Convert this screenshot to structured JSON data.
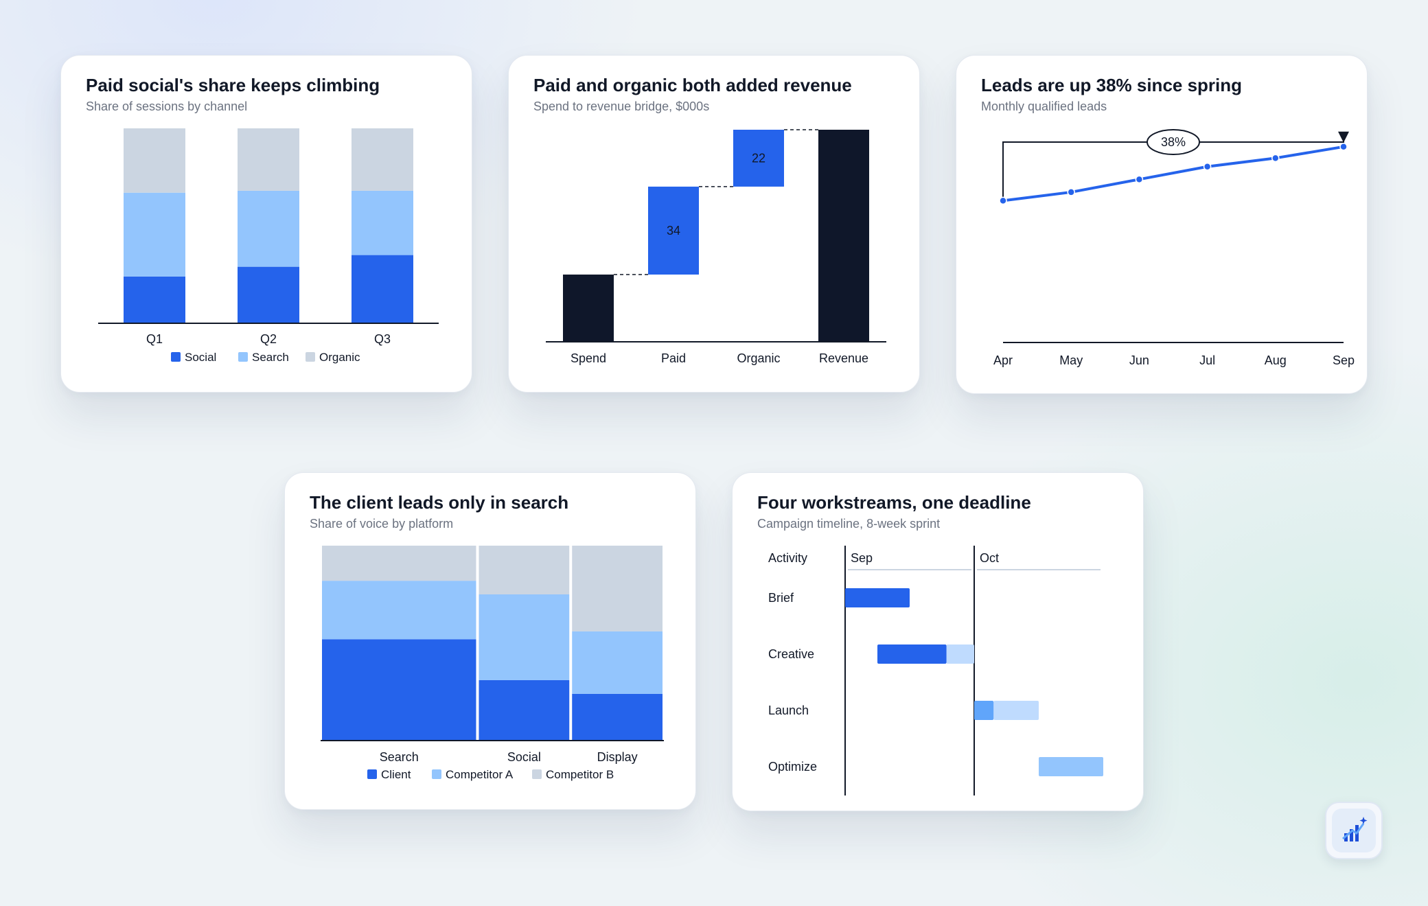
{
  "colors": {
    "social": "#2563eb",
    "search": "#93c5fd",
    "organic": "#cbd5e1",
    "dark": "#0f172a",
    "blue": "#2563eb",
    "client": "#2563eb",
    "competitor_a": "#93c5fd",
    "competitor_b": "#cbd5e1",
    "gantt_done": "#2563eb",
    "gantt_remaining": "#bfdbfe",
    "gantt_optimize": "#93c5fd"
  },
  "charts": {
    "stacked": {
      "title": "Paid social's share keeps climbing",
      "subtitle": "Share of sessions by channel"
    },
    "waterfall": {
      "title": "Paid and organic both added revenue",
      "subtitle": "Spend to revenue bridge, $000s"
    },
    "line": {
      "title": "Leads are up 38% since spring",
      "subtitle": "Monthly qualified leads"
    },
    "mekko": {
      "title": "The client leads only in search",
      "subtitle": "Share of voice by platform"
    },
    "gantt": {
      "title": "Four workstreams, one deadline",
      "subtitle": "Campaign timeline, 8-week sprint"
    }
  },
  "chart_data": [
    {
      "type": "bar",
      "stacked": true,
      "categories": [
        "Q1",
        "Q2",
        "Q3"
      ],
      "series": [
        {
          "name": "Social",
          "values": [
            24,
            29,
            35
          ]
        },
        {
          "name": "Search",
          "values": [
            43,
            39,
            33
          ]
        },
        {
          "name": "Organic",
          "values": [
            33,
            32,
            32
          ]
        }
      ],
      "ylim": [
        0,
        100
      ],
      "legend": "bottom",
      "grid": false
    },
    {
      "type": "bar",
      "subtype": "waterfall",
      "categories": [
        "Spend",
        "Paid",
        "Organic",
        "Revenue"
      ],
      "values": [
        26,
        34,
        22,
        82
      ],
      "kinds": [
        "total",
        "delta",
        "delta",
        "total"
      ],
      "data_labels": [
        "",
        "34",
        "22",
        ""
      ],
      "ylim": [
        0,
        82
      ],
      "grid": false
    },
    {
      "type": "line",
      "x": [
        "Apr",
        "May",
        "Jun",
        "Jul",
        "Aug",
        "Sep"
      ],
      "y": [
        100,
        106,
        115,
        124,
        130,
        138
      ],
      "ylim": [
        0,
        150
      ],
      "annotation": {
        "label": "38%",
        "from": "Apr",
        "to": "Sep"
      },
      "grid": false
    },
    {
      "type": "bar",
      "subtype": "mekko",
      "categories": [
        "Search",
        "Social",
        "Display"
      ],
      "widths": [
        46,
        27,
        27
      ],
      "series": [
        {
          "name": "Client",
          "values": [
            52,
            31,
            24
          ]
        },
        {
          "name": "Competitor A",
          "values": [
            30,
            44,
            32
          ]
        },
        {
          "name": "Competitor B",
          "values": [
            18,
            25,
            44
          ]
        }
      ],
      "ylim": [
        0,
        100
      ],
      "legend": "bottom"
    },
    {
      "type": "gantt",
      "header": "Activity",
      "months": [
        "Sep",
        "Oct"
      ],
      "weeks_per_month": 4,
      "tasks": [
        {
          "name": "Brief",
          "start": 0,
          "done": 1,
          "remaining": 0
        },
        {
          "name": "Creative",
          "start": 0.5,
          "done": 1.07,
          "remaining": 0.43
        },
        {
          "name": "Launch",
          "start": 2,
          "done": 0.3,
          "remaining": 0.7
        },
        {
          "name": "Optimize",
          "start": 3,
          "done": 0,
          "remaining": 1,
          "planned": true
        }
      ]
    }
  ]
}
